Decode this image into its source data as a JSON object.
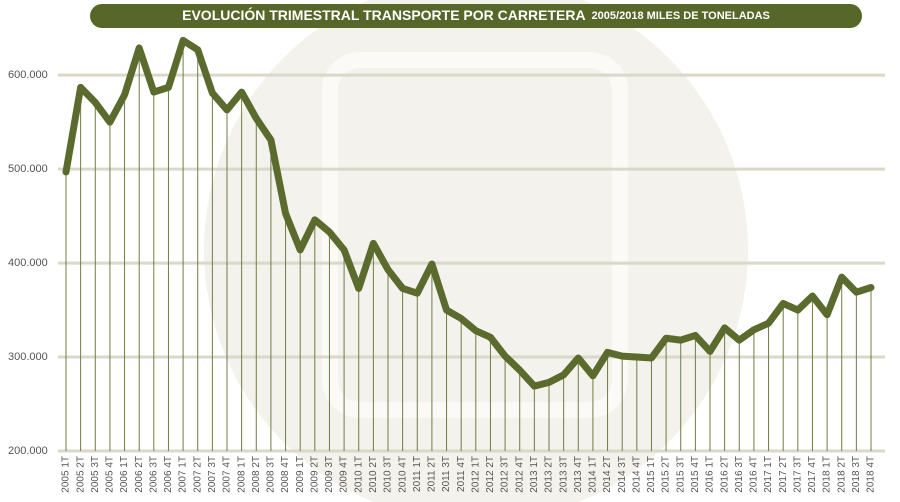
{
  "chart_data": {
    "type": "line",
    "title": "EVOLUCIÓN TRIMESTRAL TRANSPORTE POR CARRETERA",
    "subtitle": "2005/2018 MILES DE TONELADAS",
    "categories": [
      "2005 1T",
      "2005 2T",
      "2005 3T",
      "2005 4T",
      "2006 1T",
      "2006 2T",
      "2006 3T",
      "2006 4T",
      "2007 1T",
      "2007 2T",
      "2007 3T",
      "2007 4T",
      "2008 1T",
      "2008 2T",
      "2008 3T",
      "2008 4T",
      "2009 1T",
      "2009 2T",
      "2009 3T",
      "2009 4T",
      "2010 1T",
      "2010 2T",
      "2010 3T",
      "2010 4T",
      "2011 1T",
      "2011 2T",
      "2011 3T",
      "2011 4T",
      "2012 1T",
      "2012 2T",
      "2012 3T",
      "2012 4T",
      "2013 1T",
      "2013 2T",
      "2013 3T",
      "2013 4T",
      "2014 1T",
      "2014 2T",
      "2014 3T",
      "2014 4T",
      "2015 1T",
      "2015 2T",
      "2015 3T",
      "2015 4T",
      "2016 1T",
      "2016 2T",
      "2016 3T",
      "2016 4T",
      "2017 1T",
      "2017 2T",
      "2017 3T",
      "2017 4T",
      "2018 1T",
      "2018 2T",
      "2018 3T",
      "2018 4T"
    ],
    "values": [
      497000,
      587000,
      571000,
      550000,
      579000,
      629000,
      582000,
      587000,
      637000,
      627000,
      581000,
      563000,
      582000,
      554000,
      531000,
      453000,
      414000,
      446000,
      433000,
      414000,
      373000,
      421000,
      393000,
      373000,
      368000,
      399000,
      350000,
      341000,
      328000,
      321000,
      301000,
      286000,
      269000,
      273000,
      281000,
      299000,
      280000,
      305000,
      301000,
      300000,
      299000,
      320000,
      318000,
      323000,
      306000,
      331000,
      318000,
      329000,
      336000,
      357000,
      350000,
      365000,
      345000,
      385000,
      369000,
      374000
    ],
    "color": "#5b6b2e",
    "ylim": [
      200000,
      680000
    ],
    "yticks": [
      {
        "value": 200000,
        "label": "200.000"
      },
      {
        "value": 300000,
        "label": "300.000"
      },
      {
        "value": 400000,
        "label": "400.000"
      },
      {
        "value": 500000,
        "label": "500.000"
      },
      {
        "value": 600000,
        "label": "600.000"
      }
    ],
    "grid": true
  }
}
